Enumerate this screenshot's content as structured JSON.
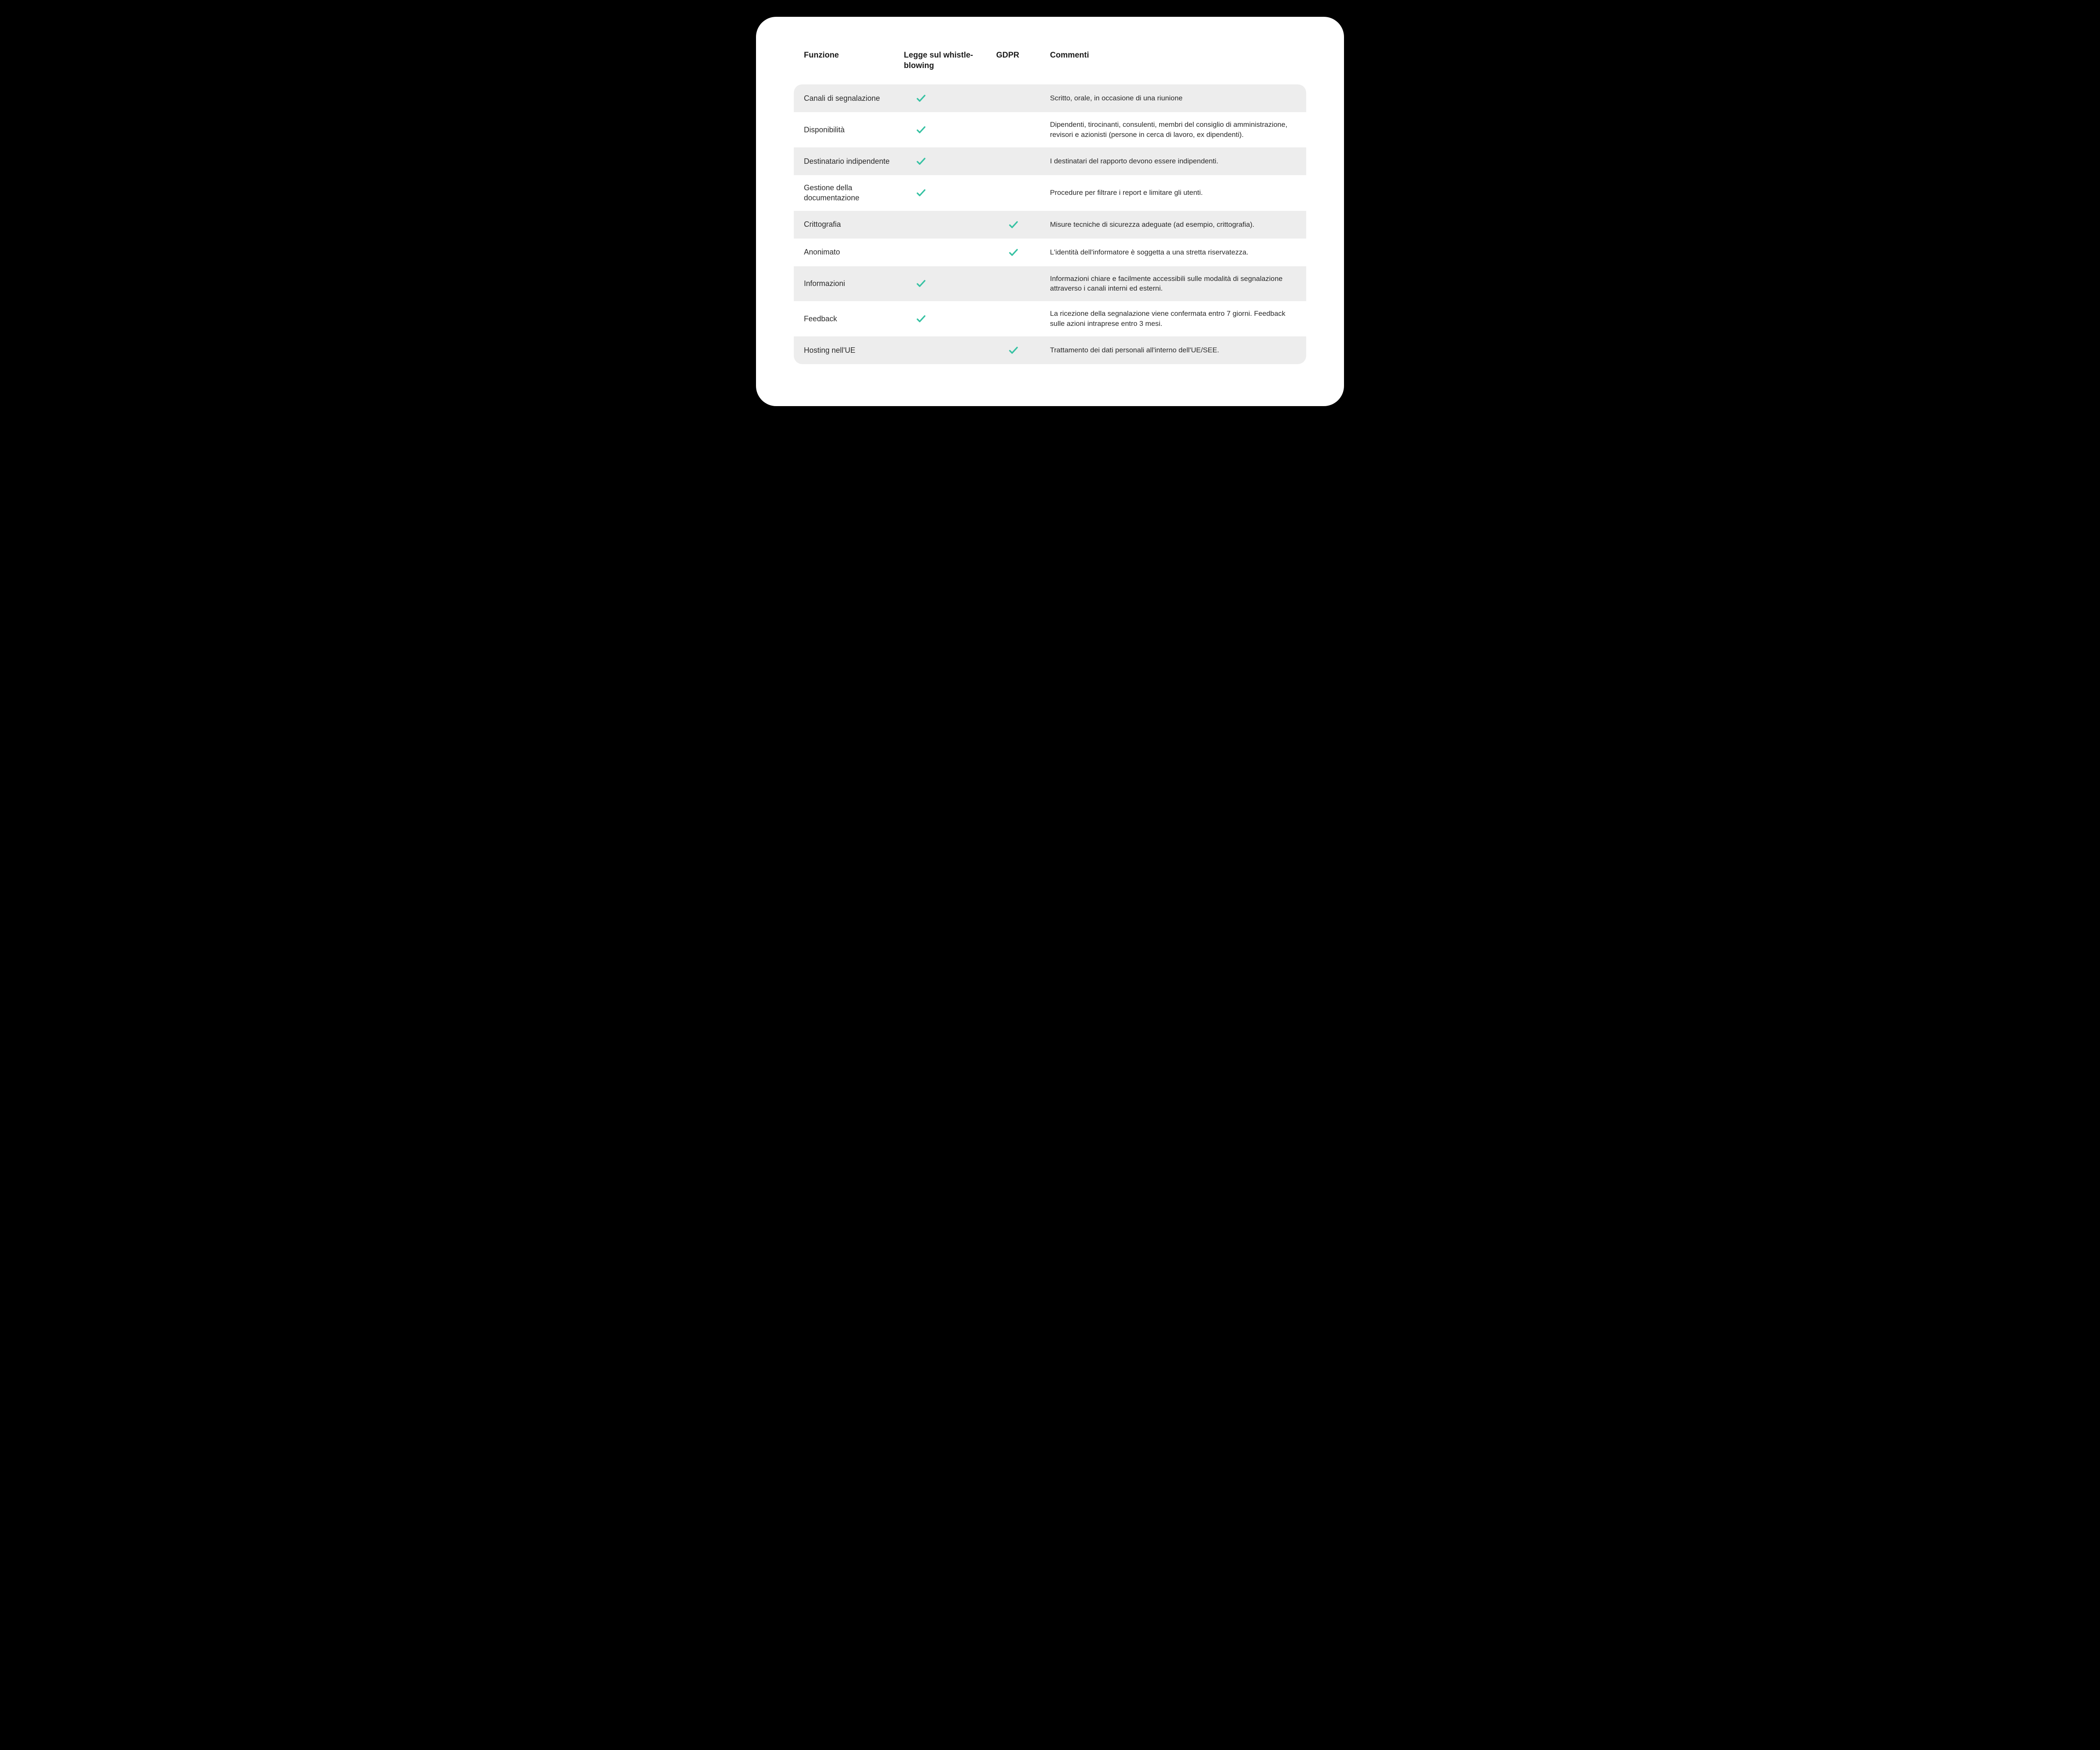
{
  "colors": {
    "page_bg": "#000000",
    "card_bg": "#ffffff",
    "row_odd_bg": "#ededed",
    "row_even_bg": "#ffffff",
    "text": "#1a1a1a",
    "check": "#37c2a3"
  },
  "table": {
    "headers": {
      "col0": "Funzione",
      "col1": "Legge sul whistle-blowing",
      "col2": "GDPR",
      "col3": "Commenti"
    },
    "rows": [
      {
        "label": "Canali di segnalazione",
        "wb": true,
        "gdpr": false,
        "comment": "Scritto, orale, in occasione di una riunione"
      },
      {
        "label": "Disponibilità",
        "wb": true,
        "gdpr": false,
        "comment": "Dipendenti, tirocinanti, consulenti, membri del consiglio di amministrazione, revisori e azionisti (persone in cerca di lavoro, ex dipendenti)."
      },
      {
        "label": "Destinatario indipendente",
        "wb": true,
        "gdpr": false,
        "comment": "I destinatari del rapporto devono essere indipendenti."
      },
      {
        "label": "Gestione della documentazione",
        "wb": true,
        "gdpr": false,
        "comment": "Procedure per filtrare i report e limitare gli utenti."
      },
      {
        "label": "Crittografia",
        "wb": false,
        "gdpr": true,
        "comment": "Misure tecniche di sicurezza adeguate (ad esempio, crittografia)."
      },
      {
        "label": "Anonimato",
        "wb": false,
        "gdpr": true,
        "comment": "L'identità dell'informatore è soggetta a una stretta riservatezza."
      },
      {
        "label": "Informazioni",
        "wb": true,
        "gdpr": false,
        "comment": "Informazioni chiare e facilmente accessibili sulle modalità di segnalazione attraverso i canali interni ed esterni."
      },
      {
        "label": "Feedback",
        "wb": true,
        "gdpr": false,
        "comment": "La ricezione della segnalazione viene confermata entro 7 giorni. Feedback sulle azioni intraprese entro 3 mesi."
      },
      {
        "label": "Hosting nell'UE",
        "wb": false,
        "gdpr": true,
        "comment": "Trattamento dei dati personali all'interno dell'UE/SEE."
      }
    ]
  }
}
